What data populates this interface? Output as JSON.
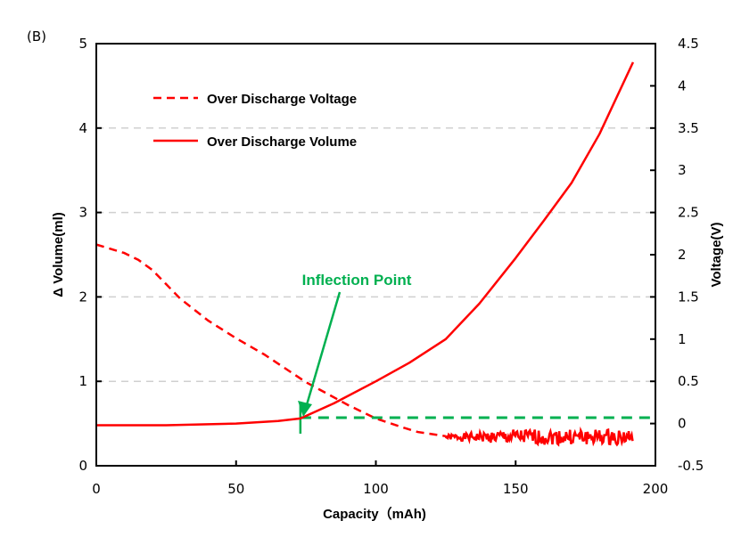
{
  "chart_data": {
    "type": "line",
    "panel_label": "(B)",
    "xlabel": "Capacity（mAh)",
    "ylabel_left": "Δ Volume(ml)",
    "ylabel_right": "Voltage(V)",
    "xlim": [
      0,
      200
    ],
    "ylim_left": [
      0,
      5
    ],
    "ylim_right": [
      -0.5,
      4.5
    ],
    "x_ticks": [
      "0",
      "50",
      "100",
      "150",
      "200"
    ],
    "y_left_ticks": [
      "0",
      "1",
      "2",
      "3",
      "4",
      "5"
    ],
    "y_right_ticks": [
      "-0.5",
      "0",
      "0.5",
      "1",
      "1.5",
      "2",
      "2.5",
      "3",
      "3.5",
      "4",
      "4.5"
    ],
    "grid": "horizontal dashed",
    "legend_position": "top-left",
    "series": [
      {
        "name": "Over Discharge Voltage",
        "axis": "right",
        "style": "dashed",
        "color": "#ff0000",
        "x": [
          0,
          10,
          15,
          20,
          25,
          30,
          40,
          50,
          60,
          75,
          90,
          100,
          110,
          115,
          125
        ],
        "y": [
          2.12,
          2.02,
          1.94,
          1.82,
          1.65,
          1.48,
          1.22,
          1.01,
          0.82,
          0.49,
          0.22,
          0.06,
          -0.05,
          -0.1,
          -0.15
        ],
        "noisy_tail": {
          "x_range": [
            125,
            192
          ],
          "y_range": [
            -0.25,
            -0.1
          ]
        }
      },
      {
        "name": "Over Discharge Volume",
        "axis": "left",
        "style": "solid",
        "color": "#ff0000",
        "x": [
          0,
          25,
          50,
          65,
          73,
          85,
          100,
          112,
          125,
          137,
          150,
          160,
          170,
          180,
          192
        ],
        "y": [
          0.48,
          0.48,
          0.5,
          0.53,
          0.56,
          0.74,
          1.0,
          1.22,
          1.5,
          1.92,
          2.46,
          2.9,
          3.35,
          3.93,
          4.78
        ]
      }
    ],
    "annotation": {
      "text": "Inflection Point",
      "color": "#00b050",
      "x": 73,
      "threshold_left": 0.57
    }
  }
}
